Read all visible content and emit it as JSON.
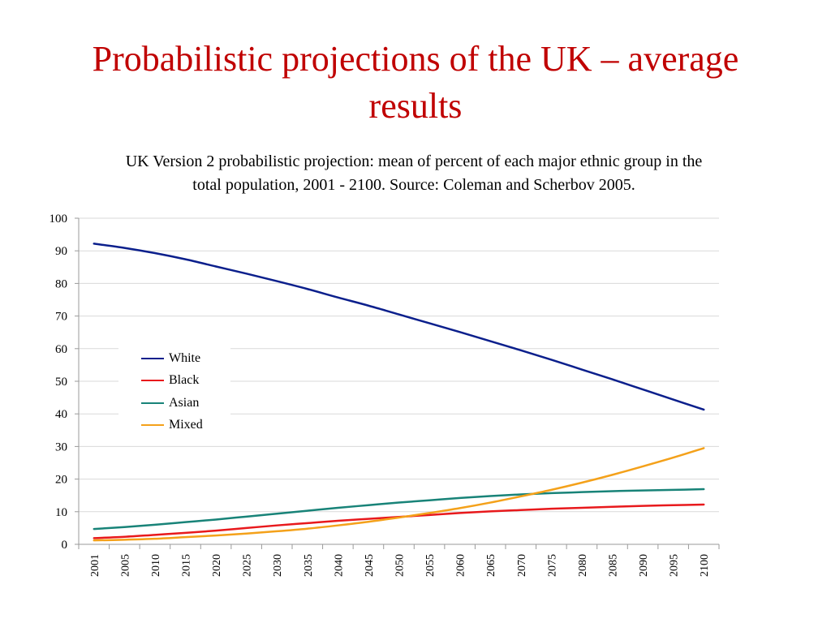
{
  "slide": {
    "title": "Probabilistic projections of the UK – average results"
  },
  "chart_data": {
    "type": "line",
    "title": "UK Version 2 probabilistic projection: mean of percent of each major ethnic group in the total population, 2001 - 2100. Source: Coleman and Scherbov 2005.",
    "xlabel": "",
    "ylabel": "",
    "ylim": [
      0,
      100
    ],
    "yticks": [
      "0",
      "10",
      "20",
      "30",
      "40",
      "50",
      "60",
      "70",
      "80",
      "90",
      "100"
    ],
    "grid": true,
    "legend_position": "left-middle",
    "categories": [
      "2001",
      "2005",
      "2010",
      "2015",
      "2020",
      "2025",
      "2030",
      "2035",
      "2040",
      "2045",
      "2050",
      "2055",
      "2060",
      "2065",
      "2070",
      "2075",
      "2080",
      "2085",
      "2090",
      "2095",
      "2100"
    ],
    "series": [
      {
        "name": "White",
        "color": "#0b1f8c",
        "values": [
          92.2,
          90.9,
          89.3,
          87.4,
          85.2,
          83.0,
          80.7,
          78.3,
          75.7,
          73.2,
          70.5,
          67.8,
          65.1,
          62.3,
          59.5,
          56.6,
          53.6,
          50.6,
          47.5,
          44.4,
          41.3
        ]
      },
      {
        "name": "Black",
        "color": "#e8191c",
        "values": [
          1.9,
          2.3,
          2.9,
          3.5,
          4.2,
          5.0,
          5.8,
          6.5,
          7.2,
          7.8,
          8.4,
          9.0,
          9.6,
          10.1,
          10.5,
          10.9,
          11.2,
          11.5,
          11.8,
          12.0,
          12.2
        ]
      },
      {
        "name": "Asian",
        "color": "#188378",
        "values": [
          4.7,
          5.3,
          6.0,
          6.8,
          7.6,
          8.5,
          9.4,
          10.3,
          11.2,
          12.0,
          12.8,
          13.5,
          14.2,
          14.8,
          15.3,
          15.7,
          16.0,
          16.3,
          16.5,
          16.7,
          16.9
        ]
      },
      {
        "name": "Mixed",
        "color": "#f4a11a",
        "values": [
          1.2,
          1.4,
          1.7,
          2.2,
          2.7,
          3.3,
          4.0,
          4.8,
          5.8,
          6.9,
          8.2,
          9.6,
          11.1,
          12.8,
          14.7,
          16.7,
          18.9,
          21.3,
          23.9,
          26.6,
          29.5
        ]
      }
    ]
  }
}
